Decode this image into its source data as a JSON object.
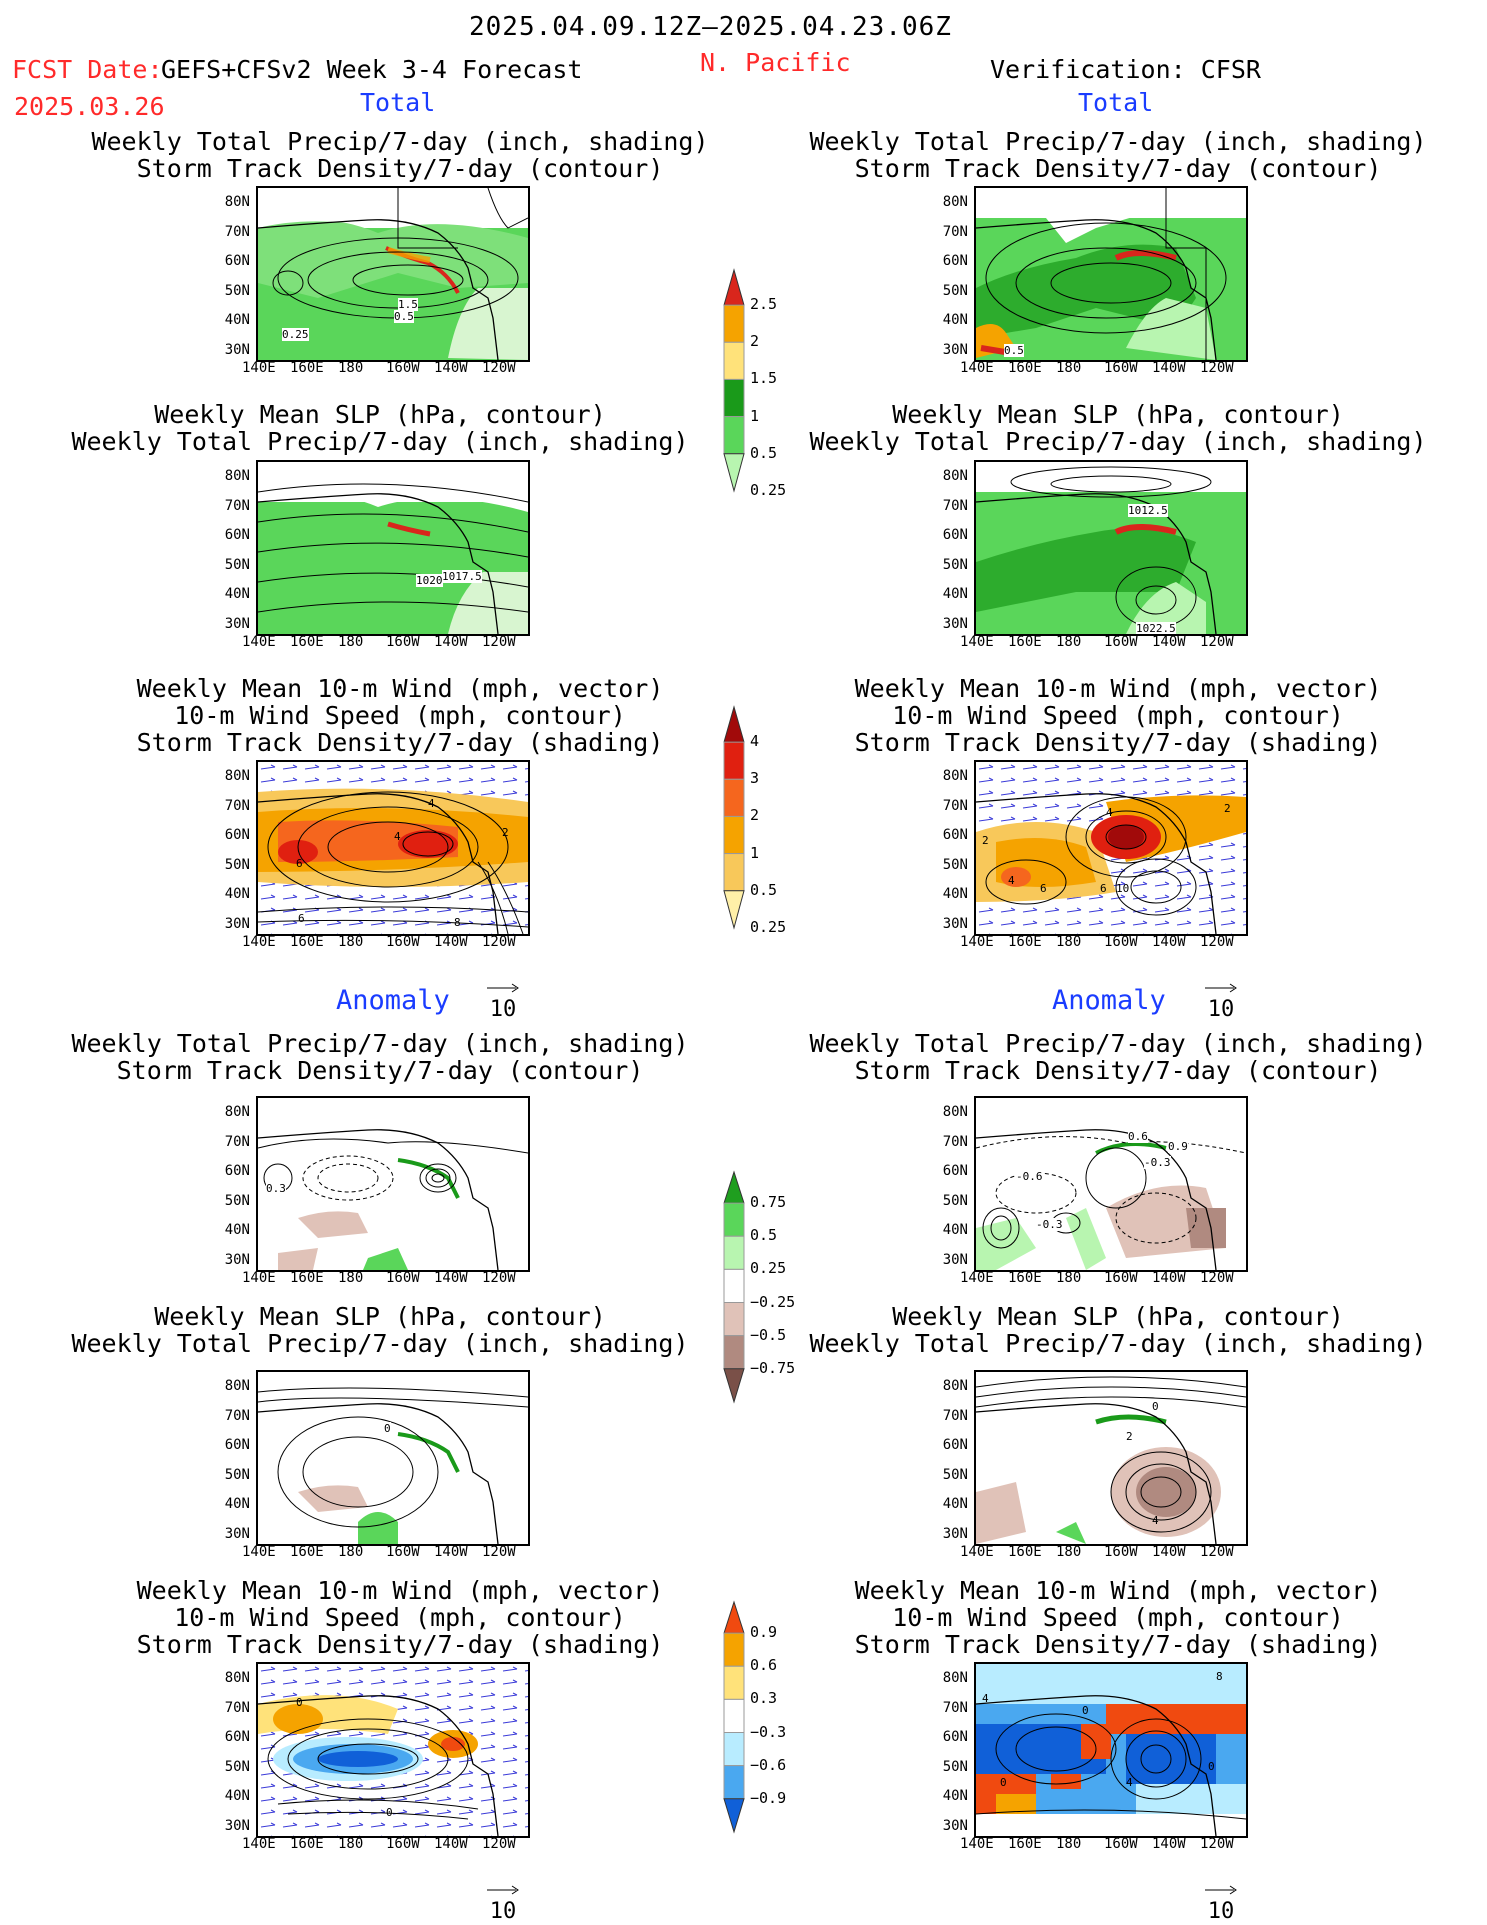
{
  "header": {
    "period": "2025.04.09.12Z—2025.04.23.06Z",
    "fcst_label": "FCST Date:",
    "fcst_model": "GEFS+CFSv2 Week 3-4 Forecast",
    "fcst_date": "2025.03.26",
    "region": "N. Pacific",
    "verification": "Verification: CFSR"
  },
  "sections": {
    "total": "Total",
    "anomaly": "Anomaly"
  },
  "panel_titles": {
    "precip_storm": [
      "Weekly Total Precip/7-day (inch, shading)",
      "Storm Track Density/7-day (contour)"
    ],
    "slp_precip": [
      "Weekly Mean SLP (hPa, contour)",
      "Weekly Total Precip/7-day (inch, shading)"
    ],
    "wind_storm": [
      "Weekly Mean 10-m Wind (mph, vector)",
      "10-m Wind Speed (mph, contour)",
      "Storm Track Density/7-day (shading)"
    ]
  },
  "axes": {
    "lat_ticks": [
      "80N",
      "70N",
      "60N",
      "50N",
      "40N",
      "30N"
    ],
    "lon_ticks": [
      "140E",
      "160E",
      "180",
      "160W",
      "140W",
      "120W"
    ]
  },
  "vector_ref": "10",
  "contour_labels": {
    "f1": [
      "1.5",
      "0.5",
      "0.25"
    ],
    "v1": [
      "0.5"
    ],
    "f2": [
      "1020",
      "1017.5"
    ],
    "v2": [
      "1012.5",
      "1022.5"
    ],
    "f3": [
      "4",
      "4",
      "2",
      "6",
      "6",
      "8"
    ],
    "v3": [
      "2",
      "4",
      "2",
      "4",
      "6",
      "6",
      "10"
    ],
    "af1": [
      "0.3"
    ],
    "av1": [
      "0.6",
      "0.9",
      "-0.3",
      "-0.6",
      "-0.3"
    ],
    "af2": [
      "0"
    ],
    "av2": [
      "0",
      "2",
      "4"
    ],
    "af3": [
      "0",
      "0"
    ],
    "av3": [
      "8",
      "4",
      "0",
      "0",
      "4",
      "0"
    ]
  },
  "colorbars": {
    "precip_total": {
      "labels": [
        "2.5",
        "2",
        "1.5",
        "1",
        "0.5",
        "0.25"
      ],
      "colors": [
        "#d9261c",
        "#f5a300",
        "#ffe27a",
        "#1a9a1a",
        "#5ad65a",
        "#b8f5b0"
      ]
    },
    "storm_total": {
      "labels": [
        "4",
        "3",
        "2",
        "1",
        "0.5",
        "0.25"
      ],
      "colors": [
        "#a10a0a",
        "#e02010",
        "#f5661e",
        "#f5a300",
        "#f8c85a",
        "#fff0a8"
      ]
    },
    "precip_anom": {
      "labels": [
        "0.75",
        "0.5",
        "0.25",
        "−0.25",
        "−0.5",
        "−0.75"
      ],
      "colors": [
        "#1f9e1f",
        "#5ad65a",
        "#b8f5b0",
        "#ffffff",
        "#e0c2b8",
        "#b08a80",
        "#7a5048"
      ]
    },
    "storm_anom": {
      "labels": [
        "0.9",
        "0.6",
        "0.3",
        "−0.3",
        "−0.6",
        "−0.9"
      ],
      "colors": [
        "#f04a10",
        "#f5a300",
        "#ffe27a",
        "#ffffff",
        "#b8ecff",
        "#4aa8f0",
        "#1060d8"
      ]
    }
  }
}
